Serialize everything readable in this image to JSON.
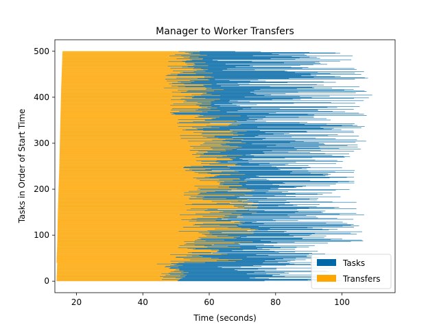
{
  "chart_data": {
    "type": "bar",
    "orientation": "horizontal",
    "title": "Manager to Worker Transfers",
    "xlabel": "Time (seconds)",
    "ylabel": "Tasks in Order of Start Time",
    "xlim": [
      13.5,
      116
    ],
    "ylim": [
      -25,
      525
    ],
    "xticks": [
      20,
      40,
      60,
      80,
      100
    ],
    "yticks": [
      0,
      100,
      200,
      300,
      400,
      500
    ],
    "grid": false,
    "legend_position": "bottom-right",
    "task_count": 500,
    "series": [
      {
        "name": "Tasks",
        "color": "#0068a6",
        "description": "horizontal span from transfer end to task end for each task"
      },
      {
        "name": "Transfers",
        "color": "#ffa500",
        "description": "horizontal span from task start to transfer end for each task"
      }
    ],
    "groups": [
      {
        "y_from": 0,
        "y_to": 40,
        "start": 14.0,
        "transfer_end_range": [
          44,
          54
        ],
        "task_end_range": [
          62,
          100
        ]
      },
      {
        "y_from": 40,
        "y_to": 80,
        "start": 14.0,
        "transfer_end_range": [
          48,
          70
        ],
        "task_end_range": [
          60,
          95
        ]
      },
      {
        "y_from": 80,
        "y_to": 150,
        "start": 14.2,
        "transfer_end_range": [
          50,
          75
        ],
        "task_end_range": [
          60,
          107
        ]
      },
      {
        "y_from": 150,
        "y_to": 200,
        "start": 14.4,
        "transfer_end_range": [
          52,
          75
        ],
        "task_end_range": [
          62,
          105
        ]
      },
      {
        "y_from": 200,
        "y_to": 240,
        "start": 14.6,
        "transfer_end_range": [
          55,
          72
        ],
        "task_end_range": [
          62,
          105
        ]
      },
      {
        "y_from": 240,
        "y_to": 300,
        "start": 14.8,
        "transfer_end_range": [
          52,
          70
        ],
        "task_end_range": [
          60,
          106
        ]
      },
      {
        "y_from": 300,
        "y_to": 360,
        "start": 15.0,
        "transfer_end_range": [
          50,
          72
        ],
        "task_end_range": [
          60,
          108
        ]
      },
      {
        "y_from": 360,
        "y_to": 420,
        "start": 15.2,
        "transfer_end_range": [
          48,
          65
        ],
        "task_end_range": [
          60,
          110
        ]
      },
      {
        "y_from": 420,
        "y_to": 460,
        "start": 15.4,
        "transfer_end_range": [
          46,
          62
        ],
        "task_end_range": [
          60,
          108
        ]
      },
      {
        "y_from": 460,
        "y_to": 500,
        "start": 15.6,
        "transfer_end_range": [
          47,
          60
        ],
        "task_end_range": [
          60,
          106
        ]
      }
    ]
  }
}
